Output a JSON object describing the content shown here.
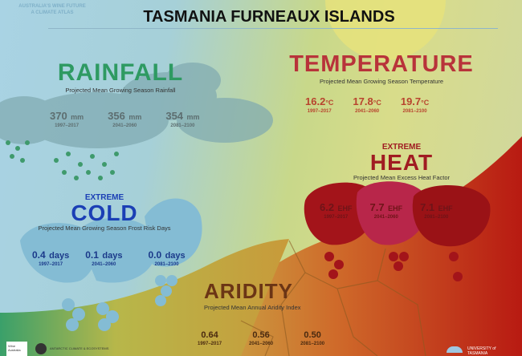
{
  "header": {
    "title": "TASMANIA FURNEAUX ISLANDS",
    "atlas_line1": "AUSTRALIA'S WINE FUTURE",
    "atlas_line2": "A CLIMATE ATLAS"
  },
  "rainfall": {
    "title": "RAINFALL",
    "subtitle": "Projected Mean Growing Season Rainfall",
    "color": "#2e9a62",
    "values": [
      {
        "value": "370",
        "unit": "mm",
        "period": "1997–2017"
      },
      {
        "value": "356",
        "unit": "mm",
        "period": "2041–2060"
      },
      {
        "value": "354",
        "unit": "mm",
        "period": "2081–2100"
      }
    ]
  },
  "temperature": {
    "title": "TEMPERATURE",
    "subtitle": "Projected Mean Growing Season Temperature",
    "color": "#b8333a",
    "values": [
      {
        "value": "16.2",
        "unit": "°C",
        "period": "1997–2017"
      },
      {
        "value": "17.8",
        "unit": "°C",
        "period": "2041–2060"
      },
      {
        "value": "19.7",
        "unit": "°C",
        "period": "2081–2100"
      }
    ]
  },
  "heat": {
    "kicker": "EXTREME",
    "title": "HEAT",
    "subtitle": "Projected Mean Excess Heat Factor",
    "color": "#a01c22",
    "values": [
      {
        "value": "6.2",
        "unit": "EHF",
        "period": "1997–2017"
      },
      {
        "value": "7.7",
        "unit": "EHF",
        "period": "2041–2060"
      },
      {
        "value": "7.1",
        "unit": "EHF",
        "period": "2081–2100"
      }
    ]
  },
  "cold": {
    "kicker": "EXTREME",
    "title": "COLD",
    "subtitle": "Projected Mean Growing Season Frost Risk Days",
    "color": "#1b3fb5",
    "values": [
      {
        "value": "0.4",
        "unit": "days",
        "period": "1997–2017"
      },
      {
        "value": "0.1",
        "unit": "days",
        "period": "2041–2060"
      },
      {
        "value": "0.0",
        "unit": "days",
        "period": "2081–2100"
      }
    ]
  },
  "aridity": {
    "title": "ARIDITY",
    "subtitle": "Projected Mean Annual Aridity Index",
    "color": "#6b3515",
    "values": [
      {
        "value": "0.64",
        "period": "1997–2017"
      },
      {
        "value": "0.56",
        "period": "2041–2060"
      },
      {
        "value": "0.50",
        "period": "2081–2100"
      }
    ]
  },
  "footer": {
    "logo_left": "Wine Australia",
    "logo_middle": "ANTARCTIC CLIMATE & ECOSYSTEMS",
    "logo_right": "UNIVERSITY of TASMANIA"
  }
}
